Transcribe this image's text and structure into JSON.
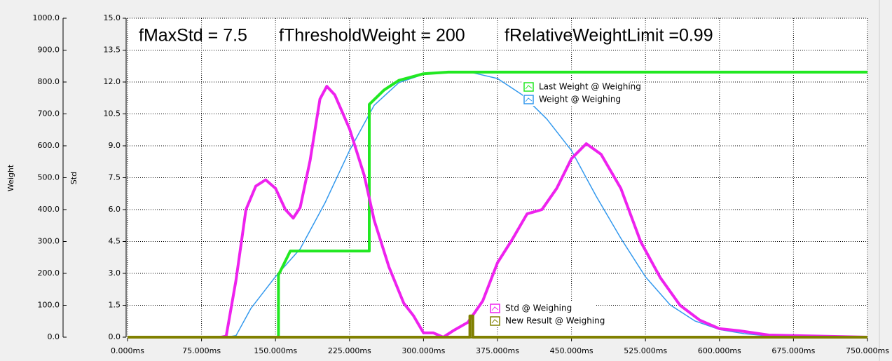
{
  "chart_data": {
    "type": "line",
    "annotations": [
      "fMaxStd = 7.5",
      "fThresholdWeight = 200",
      "fRelativeWeightLimit =0.99"
    ],
    "y_label": "Weight",
    "y2_label": "Std",
    "xlim": [
      0,
      750
    ],
    "xticks": [
      {
        "value": 0,
        "label": "0.000ms"
      },
      {
        "value": 75,
        "label": "75.000ms"
      },
      {
        "value": 150,
        "label": "150.000ms"
      },
      {
        "value": 225,
        "label": "225.000ms"
      },
      {
        "value": 300,
        "label": "300.000ms"
      },
      {
        "value": 375,
        "label": "375.000ms"
      },
      {
        "value": 450,
        "label": "450.000ms"
      },
      {
        "value": 525,
        "label": "525.000ms"
      },
      {
        "value": 600,
        "label": "600.000ms"
      },
      {
        "value": 675,
        "label": "675.000ms"
      },
      {
        "value": 750,
        "label": "750.000ms"
      }
    ],
    "ylim": [
      0,
      1000
    ],
    "yticks": [
      {
        "value": 0,
        "label": "0.0"
      },
      {
        "value": 100,
        "label": "100.0"
      },
      {
        "value": 200,
        "label": "200.0"
      },
      {
        "value": 300,
        "label": "300.0"
      },
      {
        "value": 400,
        "label": "400.0"
      },
      {
        "value": 500,
        "label": "500.0"
      },
      {
        "value": 600,
        "label": "600.0"
      },
      {
        "value": 700,
        "label": "700.0"
      },
      {
        "value": 800,
        "label": "800.0"
      },
      {
        "value": 900,
        "label": "900.0"
      },
      {
        "value": 1000,
        "label": "1000.0"
      }
    ],
    "y2lim": [
      0,
      15
    ],
    "y2ticks": [
      {
        "value": 0,
        "label": "0.0"
      },
      {
        "value": 1.5,
        "label": "1.5"
      },
      {
        "value": 3,
        "label": "3.0"
      },
      {
        "value": 4.5,
        "label": "4.5"
      },
      {
        "value": 6,
        "label": "6.0"
      },
      {
        "value": 7.5,
        "label": "7.5"
      },
      {
        "value": 9,
        "label": "9.0"
      },
      {
        "value": 10.5,
        "label": "10.5"
      },
      {
        "value": 12,
        "label": "12.0"
      },
      {
        "value": 13.5,
        "label": "13.5"
      },
      {
        "value": 15,
        "label": "15.0"
      }
    ],
    "grid": true,
    "series": [
      {
        "name": "Last Weight @ Weighing",
        "color": "#22e822",
        "width": 4,
        "axis": "y",
        "x": [
          0,
          153,
          153,
          165,
          245,
          245,
          260,
          275,
          300,
          325,
          750
        ],
        "values": [
          0,
          0,
          195,
          270,
          270,
          730,
          775,
          805,
          826,
          831,
          831
        ]
      },
      {
        "name": "Weight @ Weighing",
        "color": "#3399ee",
        "width": 1.5,
        "axis": "y",
        "x": [
          0,
          75,
          100,
          110,
          125,
          150,
          175,
          200,
          225,
          250,
          275,
          300,
          325,
          350,
          375,
          400,
          425,
          450,
          475,
          500,
          525,
          550,
          575,
          600,
          625,
          650,
          700,
          750
        ],
        "values": [
          0,
          0,
          0,
          5,
          90,
          190,
          277,
          420,
          585,
          727,
          798,
          824,
          831,
          829,
          811,
          760,
          684,
          585,
          442,
          310,
          189,
          101,
          51,
          24,
          11,
          4,
          1,
          0
        ]
      },
      {
        "name": "Std @ Weighing",
        "color": "#ee22ee",
        "width": 4,
        "axis": "y2",
        "x": [
          0,
          95,
          100,
          110,
          120,
          130,
          140,
          150,
          160,
          168,
          175,
          185,
          195,
          202,
          210,
          225,
          240,
          250,
          265,
          280,
          290,
          300,
          310,
          320,
          330,
          345,
          360,
          375,
          390,
          405,
          420,
          435,
          450,
          465,
          480,
          500,
          520,
          540,
          560,
          580,
          600,
          620,
          650,
          700,
          750
        ],
        "values": [
          0,
          0,
          0.05,
          2.7,
          6.0,
          7.1,
          7.4,
          7.0,
          6.0,
          5.6,
          6.1,
          8.3,
          11.2,
          11.8,
          11.4,
          9.8,
          7.6,
          5.5,
          3.3,
          1.6,
          1.0,
          0.2,
          0.2,
          0,
          0.3,
          0.7,
          1.7,
          3.5,
          4.6,
          5.8,
          6.0,
          7.0,
          8.4,
          9.1,
          8.6,
          7.0,
          4.5,
          2.8,
          1.5,
          0.8,
          0.4,
          0.3,
          0.1,
          0.05,
          0
        ]
      },
      {
        "name": "New Result @ Weighing",
        "color": "#808000",
        "width": 4,
        "axis": "y2",
        "x": [
          0,
          347,
          347,
          350,
          350,
          750
        ],
        "values": [
          0,
          0,
          1,
          1,
          0,
          0
        ]
      }
    ]
  }
}
